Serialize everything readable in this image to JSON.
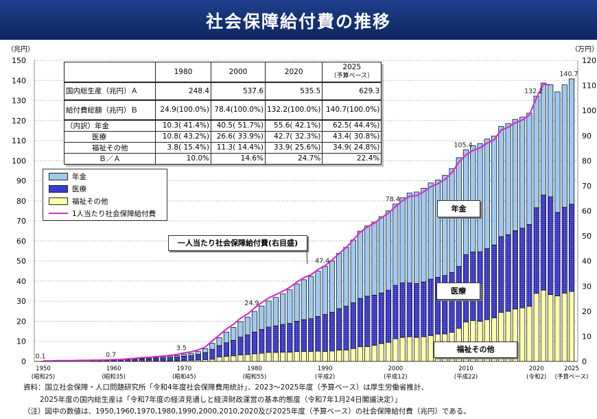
{
  "title": "社会保障給付費の推移",
  "left_unit": "（兆円）",
  "right_unit": "（万円）",
  "table": {
    "headers": [
      "",
      "1980",
      "2000",
      "2020",
      "2025"
    ],
    "header_sub": "（予算ベース）",
    "rows": [
      {
        "label": "国内総生産（兆円）Ａ",
        "cells": [
          "248.4",
          "537.6",
          "535.5",
          "629.3"
        ]
      },
      {
        "label": "給付費総額（兆円）Ｂ",
        "cells": [
          "24.9(100.0%)",
          "78.4(100.0%)",
          "132.2(100.0%)",
          "140.7(100.0%)"
        ]
      },
      {
        "label": "（内訳）年金",
        "cells": [
          "10.3( 41.4%)",
          "40.5( 51.7%)",
          "55.6( 42.1%)",
          "62.5( 44.4%)"
        ]
      },
      {
        "label": "医療",
        "cells": [
          "10.8( 43.2%)",
          "26.6( 33.9%)",
          "42.7( 32.3%)",
          "43.4( 30.8%)"
        ]
      },
      {
        "label": "福祉その他",
        "cells": [
          "3.8( 15.4%)",
          "11.3( 14.4%)",
          "33.9( 25.6%)",
          "34.9( 24.8%)"
        ]
      },
      {
        "label": "Ｂ／Ａ",
        "cells": [
          "10.0%",
          "14.6%",
          "24.7%",
          "22.4%"
        ]
      }
    ]
  },
  "legend": {
    "pension": "年金",
    "medical": "医療",
    "welfare": "福祉その他",
    "per_capita": "1人当たり社会保障給付費"
  },
  "callouts": {
    "per_capita": "一人当たり社会保障給付費(右目盛)",
    "pension": "年金",
    "medical": "医療",
    "welfare": "福祉その他"
  },
  "footnotes": [
    "資料：国立社会保障・人口問題研究所「令和4年度社会保障費用統計」、2023～2025年度（予算ベース）は厚生労働省推計、",
    "2025年度の国内総生産は「令和7年度の経済見通しと経済財政運営の基本的態度（令和7年1月24日閣議決定）」",
    "（注）図中の数値は、1950,1960,1970,1980,1990,2000,2010,2020及び2025年度（予算ベース）の社会保障給付費（兆円）である。"
  ],
  "chart_data": {
    "type": "bar",
    "stacked": true,
    "x_start": 1950,
    "x_end": 2025,
    "x_ticks": [
      {
        "year": "1950",
        "era": "(昭和25)"
      },
      {
        "year": "1960",
        "era": "(昭和35)"
      },
      {
        "year": "1970",
        "era": "(昭和45)"
      },
      {
        "year": "1980",
        "era": "(昭和55)"
      },
      {
        "year": "1990",
        "era": "(平成2)"
      },
      {
        "year": "2000",
        "era": "(平成12)"
      },
      {
        "year": "2010",
        "era": "(平成22)"
      },
      {
        "year": "2020",
        "era": "(令和2)"
      },
      {
        "year": "2025",
        "era": "(予算ベース)"
      }
    ],
    "tick_years": [
      1950,
      1960,
      1970,
      1980,
      1990,
      2000,
      2010,
      2020,
      2025
    ],
    "ylim_left": [
      0,
      150
    ],
    "ylim_right": [
      0,
      120
    ],
    "y_ticks_left": [
      0,
      10,
      20,
      30,
      40,
      50,
      60,
      70,
      80,
      90,
      100,
      110,
      120,
      130,
      140,
      150
    ],
    "y_ticks_right": [
      0,
      10,
      20,
      30,
      40,
      50,
      60,
      70,
      80,
      90,
      100,
      110,
      120
    ],
    "grid": true,
    "colors": {
      "pension": "#9ecaf2",
      "medical": "#3b3bd4",
      "welfare": "#ffffaa",
      "line": "#d22fd2"
    },
    "series": [
      {
        "name": "年金",
        "key": "pension",
        "values": [
          0.0,
          0.0,
          0.0,
          0.0,
          0.0,
          0.0,
          0.0,
          0.1,
          0.1,
          0.1,
          0.1,
          0.1,
          0.2,
          0.2,
          0.3,
          0.4,
          0.4,
          0.5,
          0.6,
          0.7,
          0.9,
          1.1,
          1.4,
          1.9,
          3.0,
          3.9,
          5.3,
          6.4,
          7.7,
          8.8,
          10.3,
          11.7,
          13.0,
          14.2,
          15.2,
          16.8,
          18.6,
          19.9,
          21.1,
          22.6,
          24.0,
          25.6,
          27.5,
          29.3,
          31.3,
          33.5,
          35.0,
          36.4,
          38.0,
          39.5,
          40.5,
          42.5,
          44.8,
          45.6,
          46.7,
          47.9,
          48.5,
          49.9,
          51.8,
          54.2,
          52.2,
          53.0,
          53.9,
          54.6,
          54.3,
          54.9,
          55.4,
          55.5,
          55.3,
          55.5,
          55.6,
          55.8,
          55.8,
          60.1,
          61.0,
          62.5
        ]
      },
      {
        "name": "医療",
        "key": "medical",
        "values": [
          0.1,
          0.1,
          0.1,
          0.2,
          0.2,
          0.2,
          0.2,
          0.2,
          0.3,
          0.3,
          0.4,
          0.5,
          0.6,
          0.7,
          0.9,
          1.0,
          1.2,
          1.4,
          1.6,
          1.8,
          2.1,
          2.3,
          2.8,
          3.5,
          4.9,
          5.7,
          6.8,
          7.7,
          8.9,
          9.8,
          10.8,
          11.8,
          12.6,
          13.2,
          13.8,
          14.3,
          15.1,
          15.8,
          16.3,
          17.3,
          18.4,
          19.3,
          20.7,
          21.8,
          22.8,
          24.1,
          25.1,
          25.0,
          25.2,
          26.0,
          26.6,
          27.1,
          26.8,
          26.8,
          27.3,
          28.1,
          28.3,
          29.1,
          29.8,
          30.8,
          33.6,
          34.1,
          34.6,
          35.4,
          36.3,
          37.8,
          38.1,
          39.0,
          39.7,
          40.7,
          42.7,
          47.4,
          48.7,
          41.6,
          42.8,
          43.4
        ]
      },
      {
        "name": "福祉その他",
        "key": "welfare",
        "values": [
          0.0,
          0.1,
          0.1,
          0.1,
          0.1,
          0.2,
          0.2,
          0.1,
          0.1,
          0.2,
          0.2,
          0.2,
          0.2,
          0.3,
          0.2,
          0.2,
          0.3,
          0.3,
          0.3,
          0.4,
          0.5,
          0.6,
          0.7,
          0.9,
          1.1,
          2.2,
          2.5,
          2.8,
          3.2,
          3.4,
          3.8,
          4.1,
          4.5,
          4.5,
          4.6,
          4.6,
          4.9,
          5.0,
          5.0,
          5.1,
          5.0,
          5.2,
          5.6,
          5.7,
          6.4,
          7.3,
          7.4,
          8.0,
          8.9,
          9.5,
          11.3,
          12.0,
          12.3,
          12.0,
          12.3,
          12.9,
          13.6,
          13.7,
          14.5,
          16.5,
          19.6,
          20.4,
          20.0,
          20.8,
          21.7,
          24.4,
          25.0,
          26.1,
          26.7,
          27.5,
          33.9,
          35.5,
          33.3,
          32.6,
          34.0,
          34.9
        ]
      },
      {
        "name": "1人当たり社会保障給付費",
        "key": "per_capita",
        "axis": "right",
        "type": "line",
        "values": [
          0.2,
          0.2,
          0.3,
          0.3,
          0.3,
          0.4,
          0.4,
          0.5,
          0.5,
          0.6,
          0.7,
          0.8,
          1.0,
          1.2,
          1.5,
          1.6,
          1.9,
          2.1,
          2.4,
          2.8,
          3.4,
          3.8,
          4.6,
          5.7,
          8.2,
          10.5,
          12.9,
          14.8,
          17.2,
          18.9,
          21.3,
          23.4,
          25.3,
          26.6,
          28.0,
          29.5,
          31.6,
          33.4,
          34.5,
          36.6,
          38.2,
          40.4,
          43.0,
          45.4,
          48.4,
          51.5,
          53.6,
          55.1,
          57.2,
          59.1,
          61.7,
          64.1,
          65.8,
          66.1,
          67.6,
          69.6,
          70.8,
          72.5,
          75.2,
          79.4,
          82.3,
          84.1,
          85.1,
          87.0,
          88.3,
          92.2,
          93.3,
          95.1,
          96.2,
          98.2,
          104.9,
          110.5,
          110.2,
          null,
          null,
          null
        ]
      }
    ],
    "data_labels": [
      {
        "year": 1950,
        "text": "0.1"
      },
      {
        "year": 1960,
        "text": "0.7"
      },
      {
        "year": 1970,
        "text": "3.5"
      },
      {
        "year": 1980,
        "text": "24.9"
      },
      {
        "year": 1990,
        "text": "47.4"
      },
      {
        "year": 2000,
        "text": "78.4"
      },
      {
        "year": 2010,
        "text": "105.4"
      },
      {
        "year": 2020,
        "text": "132.2"
      },
      {
        "year": 2025,
        "text": "140.7"
      }
    ]
  }
}
